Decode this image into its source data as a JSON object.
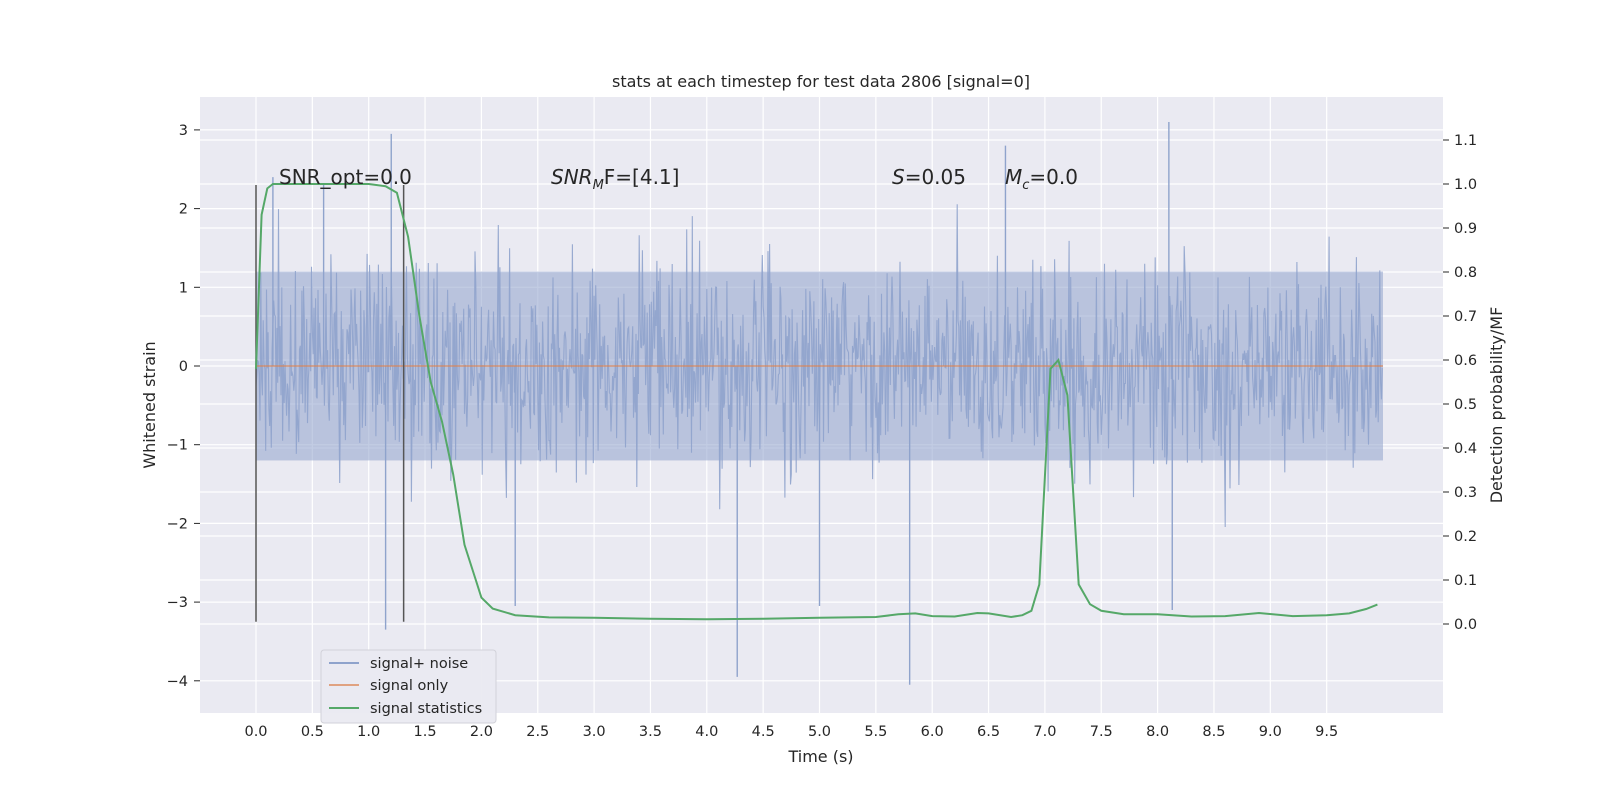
{
  "chart_data": {
    "type": "line",
    "title": "stats at each timestep for test data 2806 [signal=0]",
    "xlabel": "Time (s)",
    "ylabel": "Whitened strain",
    "y2label": "Detection probability/MF",
    "xlim": [
      -0.5,
      10.5
    ],
    "ylim": [
      -4.5,
      3.4
    ],
    "y2lim": [
      -0.2,
      1.2
    ],
    "xticks": [
      "0.0",
      "0.5",
      "1.0",
      "1.5",
      "2.0",
      "2.5",
      "3.0",
      "3.5",
      "4.0",
      "4.5",
      "5.0",
      "5.5",
      "6.0",
      "6.5",
      "7.0",
      "7.5",
      "8.0",
      "8.5",
      "9.0",
      "9.5"
    ],
    "yticks": [
      "3",
      "2",
      "1",
      "0",
      "−1",
      "−2",
      "−3",
      "−4"
    ],
    "y2ticks": [
      "1.1",
      "1.0",
      "0.9",
      "0.8",
      "0.7",
      "0.6",
      "0.5",
      "0.4",
      "0.3",
      "0.2",
      "0.1",
      "0.0"
    ],
    "grid": true,
    "legend_position": "lower-left",
    "series": [
      {
        "name": "signal+ noise",
        "color": "#8fa3cc",
        "duration": 10.0,
        "envelope_typical": 1.2,
        "envelope_extreme": 3.0,
        "spikes": [
          [
            0.15,
            2.4
          ],
          [
            0.6,
            2.3
          ],
          [
            1.2,
            2.95
          ],
          [
            1.15,
            -3.35
          ],
          [
            4.27,
            -3.95
          ],
          [
            5.8,
            -4.05
          ],
          [
            6.65,
            2.8
          ],
          [
            8.1,
            3.1
          ],
          [
            8.13,
            -3.1
          ],
          [
            2.3,
            -3.05
          ],
          [
            5.0,
            -3.05
          ]
        ]
      },
      {
        "name": "signal only",
        "color": "#dd8452",
        "x": [
          0.0,
          10.0
        ],
        "y": [
          0.0,
          0.0
        ]
      },
      {
        "name": "signal statistics",
        "color": "#55a868",
        "axis": "right",
        "x": [
          0.0,
          0.05,
          0.1,
          0.15,
          0.3,
          0.5,
          0.8,
          1.0,
          1.15,
          1.25,
          1.35,
          1.45,
          1.55,
          1.65,
          1.75,
          1.85,
          1.95,
          2.0,
          2.1,
          2.3,
          2.6,
          3.0,
          3.5,
          4.0,
          4.5,
          5.0,
          5.5,
          5.7,
          5.85,
          6.0,
          6.2,
          6.4,
          6.5,
          6.7,
          6.8,
          6.88,
          6.95,
          7.05,
          7.12,
          7.2,
          7.3,
          7.4,
          7.5,
          7.7,
          8.0,
          8.3,
          8.6,
          8.9,
          9.2,
          9.5,
          9.7,
          9.85,
          9.95
        ],
        "y": [
          0.58,
          0.93,
          0.99,
          1.0,
          1.0,
          1.0,
          1.0,
          1.0,
          0.995,
          0.98,
          0.88,
          0.7,
          0.55,
          0.46,
          0.34,
          0.18,
          0.1,
          0.06,
          0.035,
          0.02,
          0.015,
          0.014,
          0.012,
          0.011,
          0.012,
          0.014,
          0.016,
          0.022,
          0.024,
          0.018,
          0.017,
          0.025,
          0.024,
          0.016,
          0.02,
          0.03,
          0.09,
          0.58,
          0.6,
          0.52,
          0.09,
          0.045,
          0.03,
          0.022,
          0.022,
          0.017,
          0.018,
          0.025,
          0.018,
          0.02,
          0.024,
          0.034,
          0.044
        ]
      }
    ],
    "vlines": [
      {
        "x": 0.0,
        "y_from": -3.25,
        "y_to": 2.3,
        "color": "#555555"
      },
      {
        "x": 1.31,
        "y_from": -3.25,
        "y_to": 2.3,
        "color": "#555555"
      }
    ],
    "annotations": [
      {
        "id": "snr-opt",
        "text": "SNR_opt=0.0",
        "x": 0.2,
        "y": 2.35
      },
      {
        "id": "snr-mf",
        "text": "SNR_MF=[4.1]",
        "x": 2.6,
        "y": 2.35
      },
      {
        "id": "s-stat",
        "text": "S=0.05",
        "x": 5.6,
        "y": 2.35
      },
      {
        "id": "mc",
        "text": "M_c=0.0",
        "x": 6.6,
        "y": 2.35
      }
    ],
    "background": "#eaeaf2",
    "grid_color": "#ffffff"
  },
  "annotation_text": {
    "snr_opt": "SNR_opt=0.0",
    "snr_mf_sym": "SNR",
    "snr_mf_sub": "M",
    "snr_mf_rest": "F=[4.1]",
    "s_sym": "S",
    "s_rest": "=0.05",
    "mc_sym": "M",
    "mc_sub": "c",
    "mc_rest": "=0.0"
  }
}
